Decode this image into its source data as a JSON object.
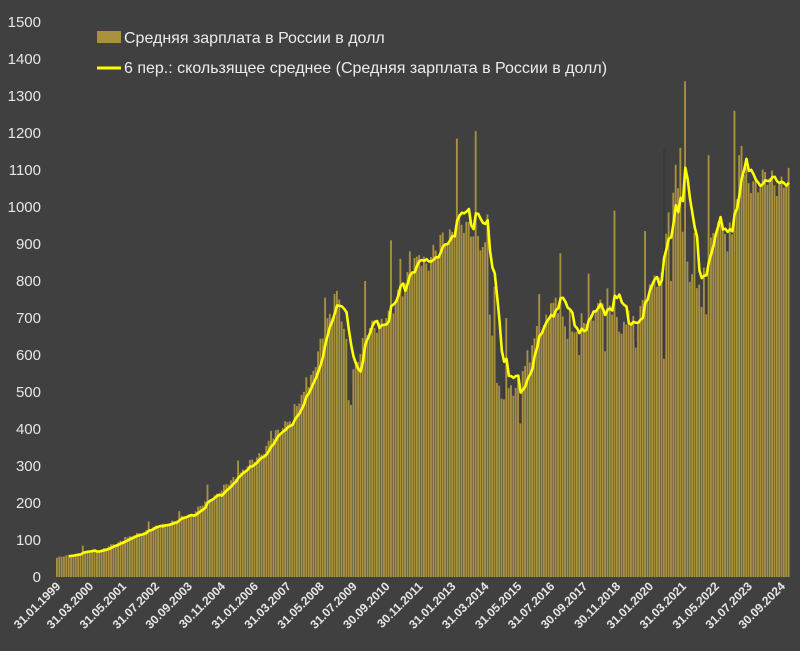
{
  "chart_data": {
    "type": "bar",
    "title": "",
    "xlabel": "",
    "ylabel": "",
    "ylim": [
      0,
      1500
    ],
    "yticks": [
      0,
      100,
      200,
      300,
      400,
      500,
      600,
      700,
      800,
      900,
      1000,
      1100,
      1200,
      1300,
      1400,
      1500
    ],
    "grid": false,
    "legend_position": "top-left",
    "x_tick_labels": [
      "31.01.1999",
      "31.03.2000",
      "31.05.2001",
      "31.07.2002",
      "30.09.2003",
      "30.11.2004",
      "31.01.2006",
      "31.03.2007",
      "31.05.2008",
      "31.07.2009",
      "30.09.2010",
      "30.11.2011",
      "31.01.2013",
      "31.03.2014",
      "31.05.2015",
      "31.07.2016",
      "30.09.2017",
      "30.11.2018",
      "31.01.2020",
      "31.03.2021",
      "31.05.2022",
      "31.07.2023",
      "30.09.2024"
    ],
    "colors": {
      "background": "#404040",
      "bar": "#a8923f",
      "bar_dark": "#3a3a3a",
      "line": "#ffff00",
      "text": "#e6e6e6"
    },
    "series": [
      {
        "name": "Средняя зарплата в России в долл",
        "kind": "bar",
        "anchors": [
          [
            0,
            52
          ],
          [
            6,
            60
          ],
          [
            12,
            66
          ],
          [
            18,
            72
          ],
          [
            23,
            85
          ],
          [
            28,
            100
          ],
          [
            35,
            118
          ],
          [
            42,
            135
          ],
          [
            50,
            152
          ],
          [
            57,
            170
          ],
          [
            62,
            195
          ],
          [
            70,
            235
          ],
          [
            76,
            270
          ],
          [
            82,
            305
          ],
          [
            86,
            330
          ],
          [
            92,
            375
          ],
          [
            98,
            425
          ],
          [
            104,
            480
          ],
          [
            108,
            540
          ],
          [
            112,
            620
          ],
          [
            115,
            690
          ],
          [
            119,
            760
          ],
          [
            121,
            700
          ],
          [
            125,
            540
          ],
          [
            128,
            600
          ],
          [
            132,
            660
          ],
          [
            137,
            690
          ],
          [
            142,
            700
          ],
          [
            146,
            780
          ],
          [
            150,
            820
          ],
          [
            154,
            850
          ],
          [
            158,
            860
          ],
          [
            161,
            880
          ],
          [
            165,
            920
          ],
          [
            170,
            950
          ],
          [
            173,
            940
          ],
          [
            177,
            950
          ],
          [
            180,
            900
          ],
          [
            182,
            870
          ],
          [
            185,
            650
          ],
          [
            187,
            540
          ],
          [
            190,
            520
          ],
          [
            193,
            500
          ],
          [
            196,
            540
          ],
          [
            200,
            600
          ],
          [
            204,
            660
          ],
          [
            208,
            700
          ],
          [
            212,
            730
          ],
          [
            216,
            680
          ],
          [
            219,
            650
          ],
          [
            223,
            690
          ],
          [
            227,
            710
          ],
          [
            231,
            740
          ],
          [
            234,
            760
          ],
          [
            237,
            720
          ],
          [
            240,
            660
          ],
          [
            244,
            680
          ],
          [
            248,
            730
          ],
          [
            253,
            770
          ],
          [
            256,
            800
          ],
          [
            258,
            880
          ],
          [
            261,
            1000
          ],
          [
            263,
            1080
          ],
          [
            266,
            950
          ],
          [
            269,
            820
          ],
          [
            272,
            780
          ],
          [
            275,
            830
          ],
          [
            279,
            930
          ],
          [
            283,
            940
          ],
          [
            287,
            960
          ],
          [
            289,
            1000
          ],
          [
            291,
            1070
          ]
        ],
        "spikes": [
          [
            11,
            85
          ],
          [
            29,
            108
          ],
          [
            39,
            150
          ],
          [
            52,
            178
          ],
          [
            64,
            250
          ],
          [
            77,
            315
          ],
          [
            91,
            395
          ],
          [
            100,
            415
          ],
          [
            106,
            540
          ],
          [
            114,
            755
          ],
          [
            118,
            765
          ],
          [
            120,
            750
          ],
          [
            124,
            478
          ],
          [
            131,
            800
          ],
          [
            140,
            700
          ],
          [
            142,
            910
          ],
          [
            146,
            860
          ],
          [
            150,
            880
          ],
          [
            154,
            870
          ],
          [
            162,
            860
          ],
          [
            170,
            1185
          ],
          [
            174,
            960
          ],
          [
            178,
            1205
          ],
          [
            183,
            980
          ],
          [
            186,
            785
          ],
          [
            189,
            482
          ],
          [
            191,
            700
          ],
          [
            194,
            490
          ],
          [
            197,
            425
          ],
          [
            201,
            580
          ],
          [
            205,
            765
          ],
          [
            210,
            740
          ],
          [
            214,
            875
          ],
          [
            218,
            725
          ],
          [
            222,
            600
          ],
          [
            226,
            820
          ],
          [
            230,
            740
          ],
          [
            233,
            610
          ],
          [
            237,
            990
          ],
          [
            243,
            720
          ],
          [
            246,
            640
          ],
          [
            250,
            935
          ],
          [
            254,
            815
          ],
          [
            258,
            1160
          ],
          [
            261,
            800
          ],
          [
            265,
            1160
          ],
          [
            267,
            1340
          ],
          [
            271,
            930
          ],
          [
            274,
            730
          ],
          [
            277,
            1140
          ],
          [
            281,
            960
          ],
          [
            285,
            880
          ],
          [
            288,
            1260
          ],
          [
            290,
            1140
          ],
          [
            291,
            1165
          ]
        ],
        "dark": [
          [
            125,
            465
          ],
          [
            190,
            480
          ],
          [
            197,
            415
          ],
          [
            222,
            615
          ],
          [
            233,
            610
          ],
          [
            246,
            620
          ],
          [
            258,
            590
          ],
          [
            276,
            710
          ]
        ]
      },
      {
        "name": "6 пер.: скользящее среднее (Средняя зарплата в России в долл)",
        "kind": "line"
      }
    ]
  }
}
